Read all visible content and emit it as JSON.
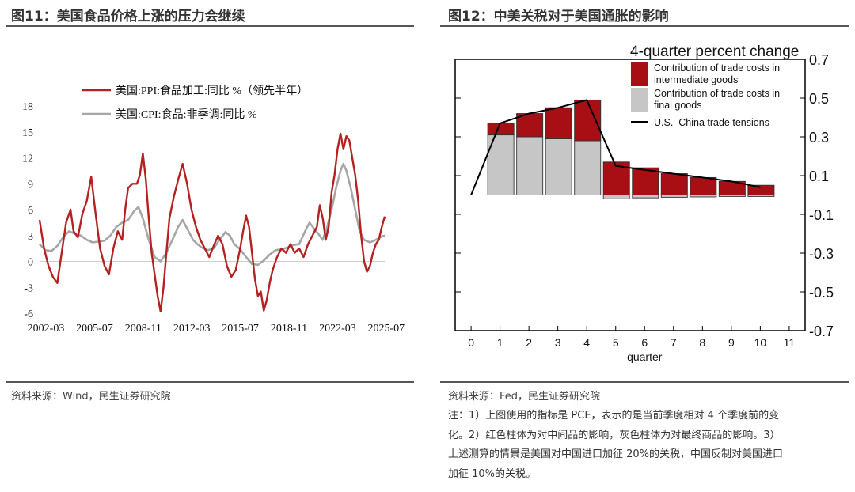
{
  "left_panel": {
    "title": "图11：美国食品价格上涨的压力会继续",
    "source": "资料来源：Wind，民生证券研究院"
  },
  "right_panel": {
    "title": "图12：中美关税对于美国通胀的影响",
    "source": "资料来源：Fed，民生证券研究院",
    "note": [
      "注：1）上图使用的指标是 PCE，表示的是当前季度相对 4 个季度前的变",
      "化。2）红色柱体为对中间品的影响，灰色柱体为对最终商品的影响。3）",
      "上述测算的情景是美国对中国进口加征 20%的关税，中国反制对美国进口",
      "加征 10%的关税。"
    ]
  },
  "colors": {
    "red": "#b52121",
    "gray": "#a6a6a6",
    "dark_red": "#a80f14",
    "bar_gray": "#c6c6c6"
  },
  "chart_data": [
    {
      "type": "line",
      "title": "",
      "x_tick_labels": [
        "2002-03",
        "2005-07",
        "2008-11",
        "2012-03",
        "2015-07",
        "2018-11",
        "2022-03",
        "2025-07"
      ],
      "x_range": [
        2002.2,
        2025.6
      ],
      "ylim": [
        -6,
        18
      ],
      "y_ticks": [
        -6,
        -3,
        0,
        3,
        6,
        9,
        12,
        15,
        18
      ],
      "y_tick_labels": [
        "-6",
        "-3",
        "0",
        "3",
        "6",
        "9",
        "12",
        "15",
        "18"
      ],
      "legend_position": "top",
      "series": [
        {
          "name": "美国:PPI:食品加工:同比 %（领先半年）",
          "color": "#b52121",
          "points": [
            [
              2002.2,
              4.8
            ],
            [
              2002.5,
              1.5
            ],
            [
              2002.8,
              -0.5
            ],
            [
              2003.1,
              -1.8
            ],
            [
              2003.4,
              -2.5
            ],
            [
              2003.7,
              1.0
            ],
            [
              2004.0,
              4.5
            ],
            [
              2004.3,
              6.0
            ],
            [
              2004.5,
              3.5
            ],
            [
              2004.8,
              2.8
            ],
            [
              2005.1,
              5.5
            ],
            [
              2005.4,
              7.0
            ],
            [
              2005.7,
              9.8
            ],
            [
              2006.0,
              5.5
            ],
            [
              2006.3,
              1.5
            ],
            [
              2006.6,
              -0.5
            ],
            [
              2006.9,
              -1.5
            ],
            [
              2007.2,
              1.5
            ],
            [
              2007.5,
              3.5
            ],
            [
              2007.8,
              2.5
            ],
            [
              2008.0,
              6.0
            ],
            [
              2008.2,
              8.5
            ],
            [
              2008.5,
              9.0
            ],
            [
              2008.8,
              9.0
            ],
            [
              2009.0,
              10.0
            ],
            [
              2009.2,
              12.5
            ],
            [
              2009.4,
              9.5
            ],
            [
              2009.6,
              5.0
            ],
            [
              2009.8,
              1.0
            ],
            [
              2010.0,
              -1.5
            ],
            [
              2010.2,
              -4.0
            ],
            [
              2010.4,
              -5.8
            ],
            [
              2010.6,
              -3.0
            ],
            [
              2010.8,
              1.0
            ],
            [
              2011.0,
              5.0
            ],
            [
              2011.3,
              7.5
            ],
            [
              2011.6,
              9.5
            ],
            [
              2011.9,
              11.3
            ],
            [
              2012.2,
              9.0
            ],
            [
              2012.5,
              6.0
            ],
            [
              2012.8,
              4.0
            ],
            [
              2013.1,
              2.5
            ],
            [
              2013.4,
              1.5
            ],
            [
              2013.7,
              0.5
            ],
            [
              2014.0,
              1.8
            ],
            [
              2014.3,
              3.0
            ],
            [
              2014.6,
              2.0
            ],
            [
              2014.9,
              -0.5
            ],
            [
              2015.2,
              -1.8
            ],
            [
              2015.5,
              -1.0
            ],
            [
              2015.8,
              1.5
            ],
            [
              2016.0,
              3.5
            ],
            [
              2016.2,
              5.3
            ],
            [
              2016.4,
              4.0
            ],
            [
              2016.6,
              1.0
            ],
            [
              2016.8,
              -2.0
            ],
            [
              2017.0,
              -4.0
            ],
            [
              2017.2,
              -3.5
            ],
            [
              2017.4,
              -5.7
            ],
            [
              2017.6,
              -4.5
            ],
            [
              2017.8,
              -2.5
            ],
            [
              2018.0,
              -1.0
            ],
            [
              2018.3,
              0.5
            ],
            [
              2018.6,
              1.5
            ],
            [
              2018.9,
              1.0
            ],
            [
              2019.2,
              2.0
            ],
            [
              2019.5,
              1.0
            ],
            [
              2019.8,
              1.5
            ],
            [
              2020.1,
              0.5
            ],
            [
              2020.4,
              2.0
            ],
            [
              2020.7,
              3.0
            ],
            [
              2021.0,
              4.0
            ],
            [
              2021.2,
              6.5
            ],
            [
              2021.4,
              5.0
            ],
            [
              2021.6,
              2.5
            ],
            [
              2021.8,
              4.0
            ],
            [
              2022.0,
              8.0
            ],
            [
              2022.2,
              10.0
            ],
            [
              2022.4,
              13.0
            ],
            [
              2022.6,
              14.8
            ],
            [
              2022.8,
              13.0
            ],
            [
              2023.0,
              14.5
            ],
            [
              2023.2,
              14.0
            ],
            [
              2023.4,
              12.0
            ],
            [
              2023.6,
              10.0
            ],
            [
              2023.8,
              7.0
            ],
            [
              2024.0,
              3.0
            ],
            [
              2024.2,
              0.0
            ],
            [
              2024.4,
              -1.2
            ],
            [
              2024.6,
              -0.5
            ],
            [
              2024.8,
              1.0
            ],
            [
              2025.0,
              2.0
            ],
            [
              2025.2,
              2.5
            ],
            [
              2025.4,
              4.0
            ],
            [
              2025.6,
              5.2
            ]
          ]
        },
        {
          "name": "美国:CPI:食品:非季调:同比 %",
          "color": "#a6a6a6",
          "points": [
            [
              2002.2,
              2.0
            ],
            [
              2002.6,
              1.3
            ],
            [
              2003.0,
              1.2
            ],
            [
              2003.4,
              1.8
            ],
            [
              2003.8,
              2.8
            ],
            [
              2004.2,
              3.5
            ],
            [
              2004.6,
              3.2
            ],
            [
              2005.0,
              3.0
            ],
            [
              2005.4,
              2.5
            ],
            [
              2005.8,
              2.2
            ],
            [
              2006.2,
              2.3
            ],
            [
              2006.6,
              2.4
            ],
            [
              2007.0,
              3.0
            ],
            [
              2007.4,
              4.0
            ],
            [
              2007.8,
              4.5
            ],
            [
              2008.2,
              4.8
            ],
            [
              2008.6,
              5.8
            ],
            [
              2008.9,
              6.3
            ],
            [
              2009.2,
              5.0
            ],
            [
              2009.6,
              2.5
            ],
            [
              2010.0,
              0.5
            ],
            [
              2010.4,
              0.0
            ],
            [
              2010.8,
              1.0
            ],
            [
              2011.2,
              2.5
            ],
            [
              2011.6,
              4.0
            ],
            [
              2011.9,
              4.8
            ],
            [
              2012.3,
              3.5
            ],
            [
              2012.6,
              2.5
            ],
            [
              2012.9,
              2.0
            ],
            [
              2013.2,
              1.6
            ],
            [
              2013.6,
              1.3
            ],
            [
              2014.0,
              1.5
            ],
            [
              2014.4,
              2.5
            ],
            [
              2014.8,
              3.4
            ],
            [
              2015.1,
              3.0
            ],
            [
              2015.4,
              2.0
            ],
            [
              2015.8,
              1.4
            ],
            [
              2016.2,
              0.5
            ],
            [
              2016.6,
              -0.3
            ],
            [
              2017.0,
              -0.4
            ],
            [
              2017.4,
              0.1
            ],
            [
              2017.8,
              0.8
            ],
            [
              2018.2,
              1.3
            ],
            [
              2018.6,
              1.4
            ],
            [
              2019.0,
              1.6
            ],
            [
              2019.4,
              1.9
            ],
            [
              2019.8,
              2.0
            ],
            [
              2020.2,
              3.5
            ],
            [
              2020.5,
              4.5
            ],
            [
              2020.8,
              3.8
            ],
            [
              2021.1,
              3.2
            ],
            [
              2021.4,
              2.5
            ],
            [
              2021.7,
              4.0
            ],
            [
              2022.0,
              6.0
            ],
            [
              2022.3,
              8.5
            ],
            [
              2022.6,
              10.5
            ],
            [
              2022.8,
              11.3
            ],
            [
              2023.0,
              10.5
            ],
            [
              2023.3,
              8.5
            ],
            [
              2023.6,
              6.0
            ],
            [
              2023.9,
              3.5
            ],
            [
              2024.2,
              2.5
            ],
            [
              2024.6,
              2.2
            ],
            [
              2025.0,
              2.5
            ],
            [
              2025.4,
              2.9
            ],
            [
              2025.6,
              3.0
            ]
          ]
        }
      ]
    },
    {
      "type": "bar",
      "title": "4-quarter percent change",
      "xlabel": "quarter",
      "x_ticks": [
        0,
        1,
        2,
        3,
        4,
        5,
        6,
        7,
        8,
        9,
        10,
        11
      ],
      "xlim": [
        -0.55,
        11.55
      ],
      "ylim": [
        -0.7,
        0.7
      ],
      "y_ticks": [
        -0.7,
        -0.5,
        -0.3,
        -0.1,
        0.1,
        0.3,
        0.5,
        0.7
      ],
      "y_tick_labels": [
        "-0.7",
        "-0.5",
        "-0.3",
        "-0.1",
        "0.1",
        "0.3",
        "0.5",
        "0.7"
      ],
      "legend_position": "top-right",
      "categories": [
        1,
        2,
        3,
        4,
        5,
        6,
        7,
        8,
        9,
        10
      ],
      "series": [
        {
          "name": "Contribution of trade costs in final goods",
          "color": "#c6c6c6",
          "values": [
            0.31,
            0.3,
            0.29,
            0.28,
            -0.02,
            -0.015,
            -0.012,
            -0.01,
            -0.008,
            -0.008
          ]
        },
        {
          "name": "Contribution of trade costs in intermediate goods",
          "color": "#a80f14",
          "values": [
            0.06,
            0.12,
            0.16,
            0.21,
            0.17,
            0.14,
            0.11,
            0.09,
            0.07,
            0.05
          ]
        }
      ],
      "line": {
        "name": "U.S.–China trade tensions",
        "color": "#000000",
        "x": [
          0,
          1,
          2,
          3,
          4,
          5,
          6,
          7,
          8,
          9,
          10
        ],
        "values": [
          0.0,
          0.37,
          0.42,
          0.45,
          0.49,
          0.15,
          0.13,
          0.11,
          0.09,
          0.07,
          0.04
        ]
      }
    }
  ]
}
